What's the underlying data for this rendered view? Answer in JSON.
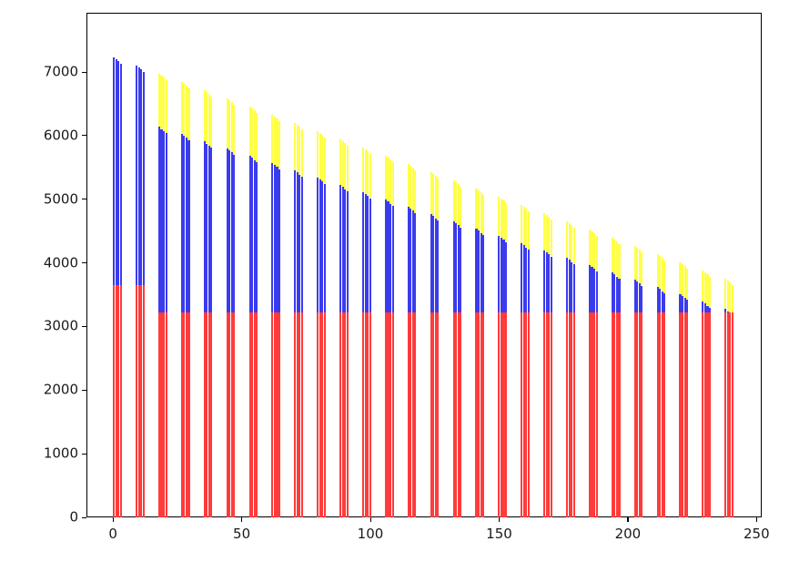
{
  "chart_data": {
    "type": "bar",
    "variant": "grouped-stacked-thin-bars",
    "title": "",
    "xlabel": "",
    "ylabel": "",
    "xlim": [
      -10.3,
      252
    ],
    "ylim": [
      0,
      7930
    ],
    "xticks": [
      0,
      50,
      100,
      150,
      200,
      250
    ],
    "yticks": [
      0,
      1000,
      2000,
      3000,
      4000,
      5000,
      6000,
      7000
    ],
    "grid": false,
    "legend": null,
    "colors": {
      "bottom_segment": "#ff3b3b",
      "middle_segment": "#3b3bee",
      "top_segment": "#ffff46"
    },
    "series_names": [
      "red-bottom",
      "blue-middle",
      "yellow-top"
    ],
    "bars_per_cluster": 4,
    "bar_width_units": 0.75,
    "bar_offset_step_units": 0.9,
    "within_cluster_total_step": -32,
    "within_cluster_blue_step": -29,
    "clusters": [
      {
        "x": 0.0,
        "red": 3650,
        "blue_top": 7230,
        "total": 7230
      },
      {
        "x": 8.8,
        "red": 3650,
        "blue_top": 7101,
        "total": 7101
      },
      {
        "x": 17.6,
        "red": 3220,
        "blue_top": 6134,
        "total": 6972
      },
      {
        "x": 26.4,
        "red": 3220,
        "blue_top": 6020,
        "total": 6843
      },
      {
        "x": 35.2,
        "red": 3220,
        "blue_top": 5905,
        "total": 6714
      },
      {
        "x": 44.0,
        "red": 3220,
        "blue_top": 5791,
        "total": 6586
      },
      {
        "x": 52.8,
        "red": 3220,
        "blue_top": 5676,
        "total": 6457
      },
      {
        "x": 61.6,
        "red": 3220,
        "blue_top": 5562,
        "total": 6328
      },
      {
        "x": 70.4,
        "red": 3220,
        "blue_top": 5447,
        "total": 6199
      },
      {
        "x": 79.2,
        "red": 3220,
        "blue_top": 5333,
        "total": 6070
      },
      {
        "x": 88.0,
        "red": 3220,
        "blue_top": 5218,
        "total": 5941
      },
      {
        "x": 96.8,
        "red": 3220,
        "blue_top": 5104,
        "total": 5812
      },
      {
        "x": 105.6,
        "red": 3220,
        "blue_top": 4989,
        "total": 5684
      },
      {
        "x": 114.4,
        "red": 3220,
        "blue_top": 4875,
        "total": 5555
      },
      {
        "x": 123.2,
        "red": 3220,
        "blue_top": 4760,
        "total": 5426
      },
      {
        "x": 132.0,
        "red": 3220,
        "blue_top": 4646,
        "total": 5297
      },
      {
        "x": 140.8,
        "red": 3220,
        "blue_top": 4531,
        "total": 5168
      },
      {
        "x": 149.6,
        "red": 3220,
        "blue_top": 4417,
        "total": 5039
      },
      {
        "x": 158.4,
        "red": 3220,
        "blue_top": 4302,
        "total": 4910
      },
      {
        "x": 167.2,
        "red": 3220,
        "blue_top": 4188,
        "total": 4782
      },
      {
        "x": 176.0,
        "red": 3220,
        "blue_top": 4073,
        "total": 4653
      },
      {
        "x": 184.8,
        "red": 3220,
        "blue_top": 3959,
        "total": 4524
      },
      {
        "x": 193.6,
        "red": 3220,
        "blue_top": 3844,
        "total": 4395
      },
      {
        "x": 202.4,
        "red": 3220,
        "blue_top": 3730,
        "total": 4266
      },
      {
        "x": 211.2,
        "red": 3220,
        "blue_top": 3615,
        "total": 4137
      },
      {
        "x": 220.0,
        "red": 3220,
        "blue_top": 3501,
        "total": 4008
      },
      {
        "x": 228.8,
        "red": 3220,
        "blue_top": 3386,
        "total": 3880
      },
      {
        "x": 237.6,
        "red": 3220,
        "blue_top": 3271,
        "total": 3751
      }
    ]
  },
  "layout_note": "no title, no legend, no axis labels; plain white figure"
}
